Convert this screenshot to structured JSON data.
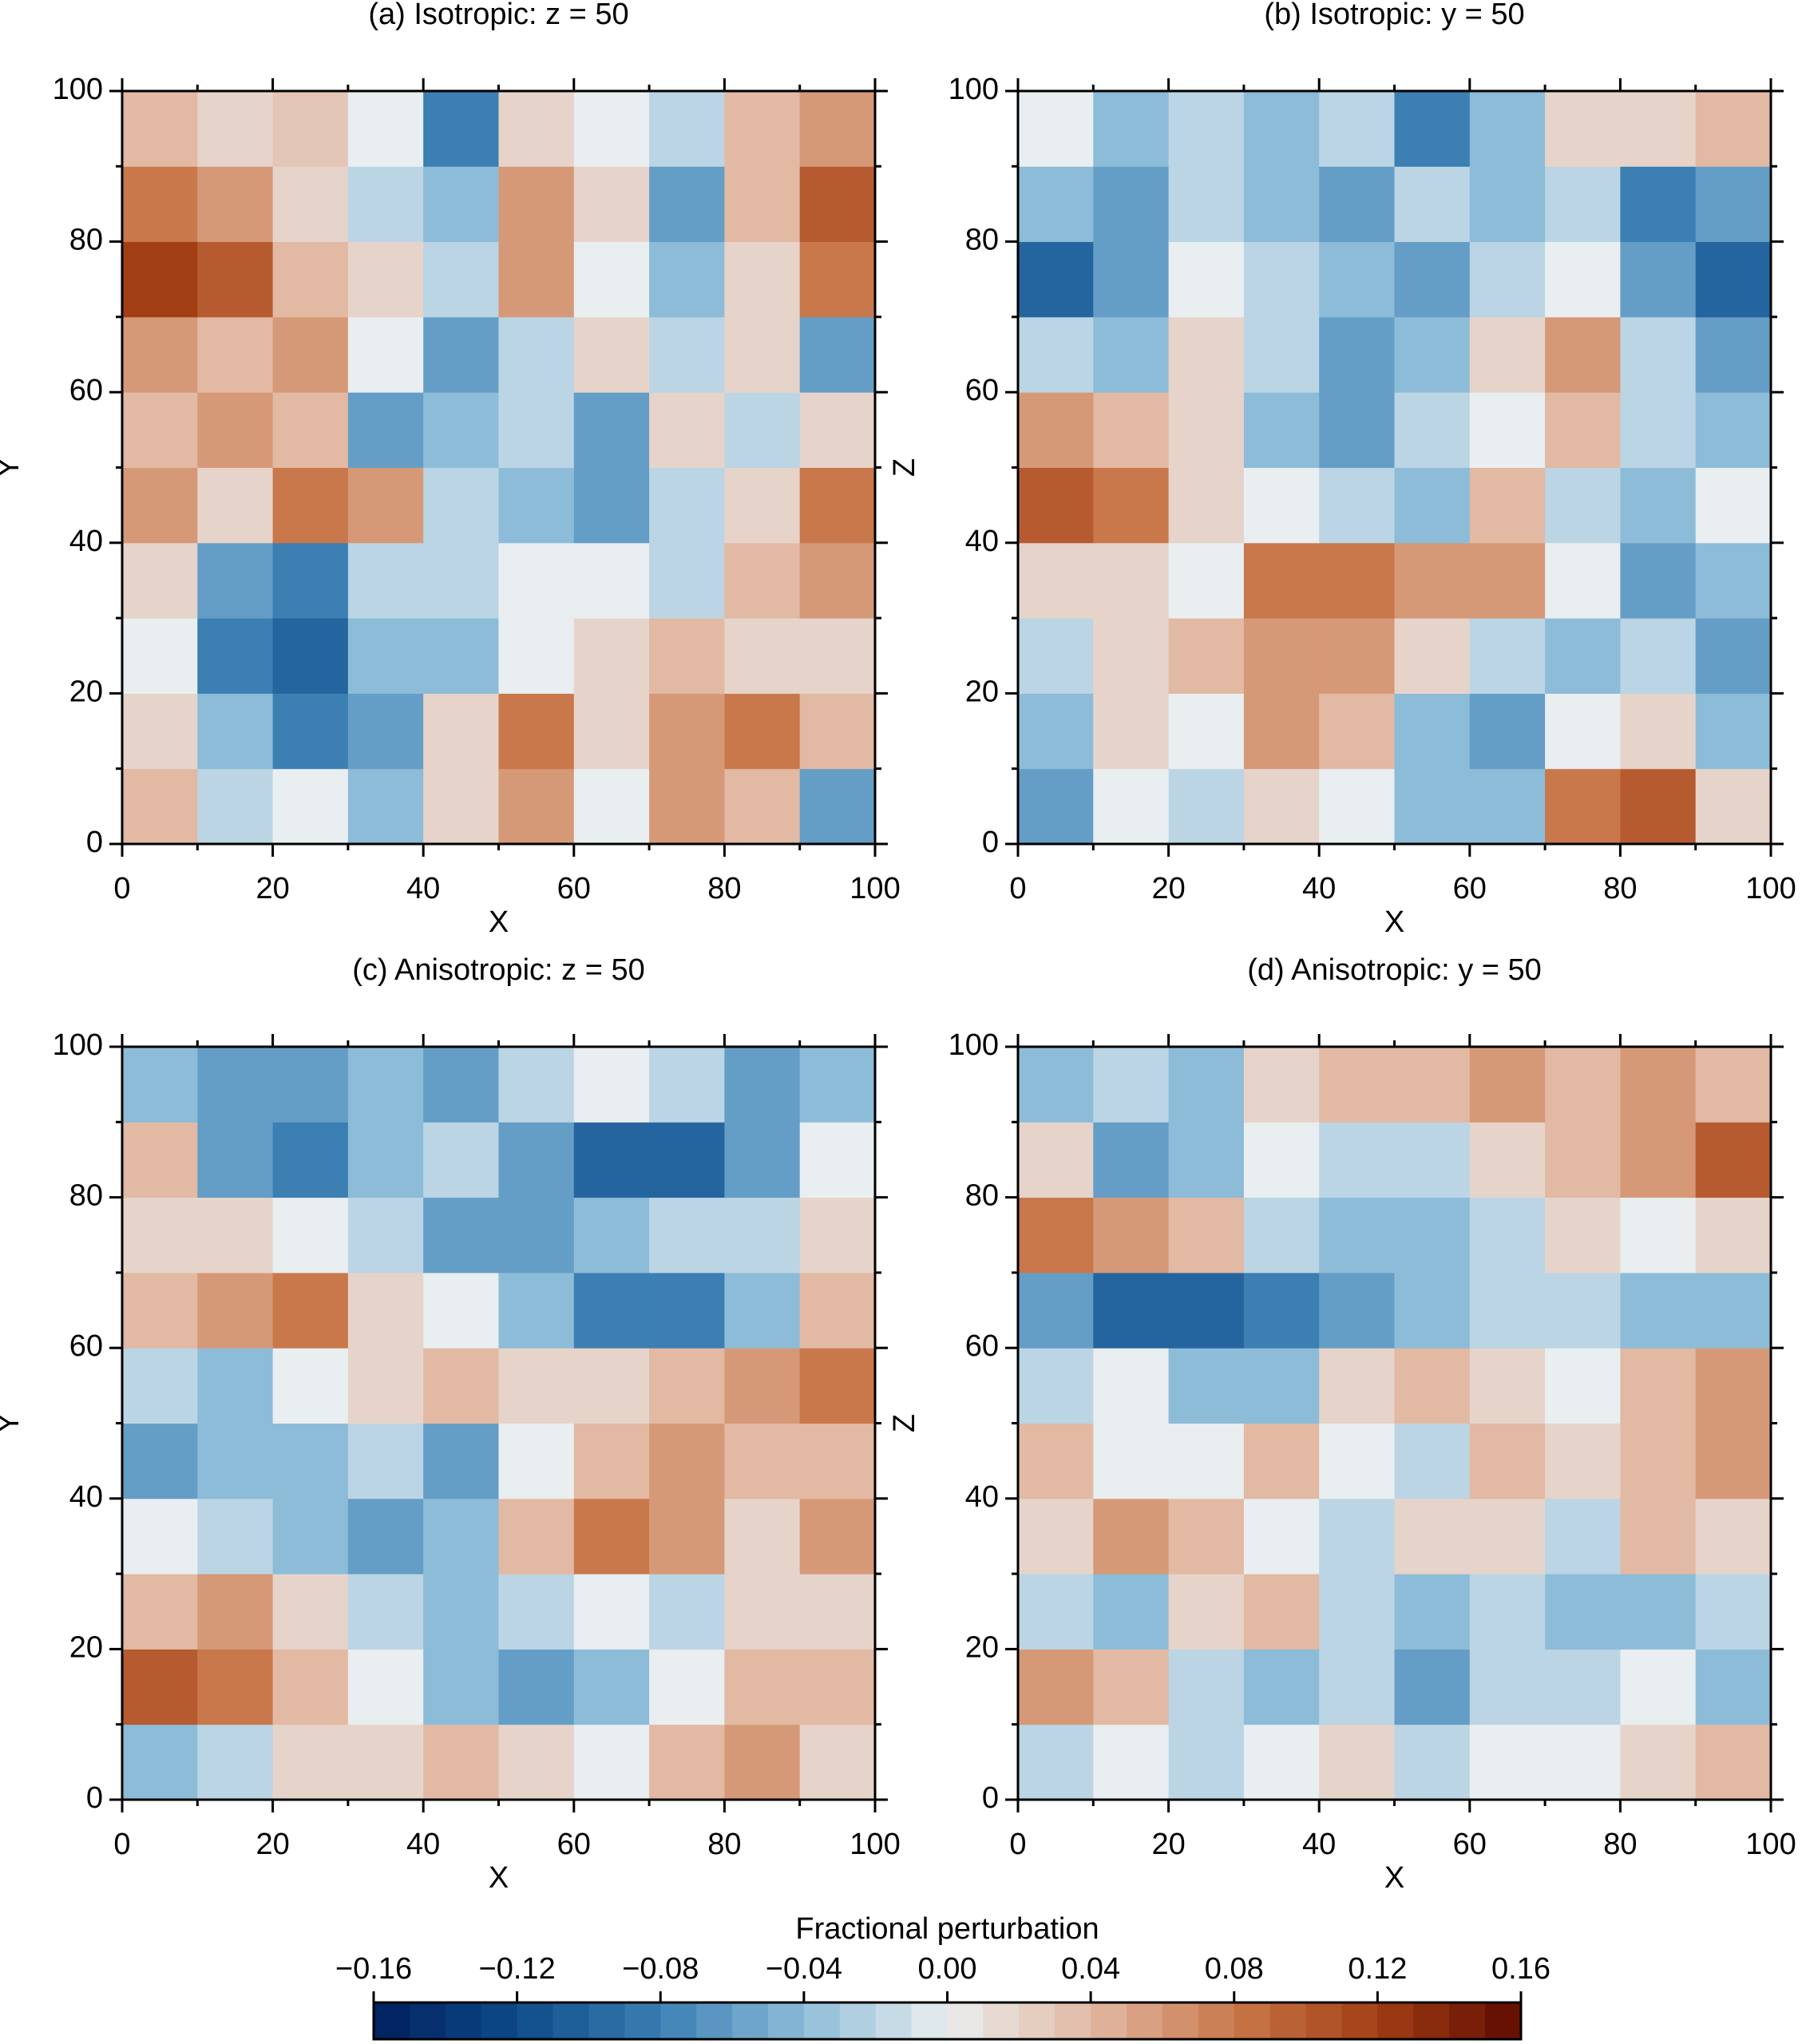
{
  "chart_data": [
    {
      "type": "heatmap",
      "title": "(a) Isotropic: z = 50",
      "x_label": "X",
      "y_label": "Y",
      "xlim": [
        0,
        100
      ],
      "ylim": [
        0,
        100
      ],
      "xticks": [
        0,
        20,
        40,
        60,
        80,
        100
      ],
      "yticks": [
        0,
        20,
        40,
        60,
        80,
        100
      ],
      "z": [
        [
          0.04,
          -0.02,
          0.0,
          -0.04,
          0.02,
          0.06,
          0.0,
          0.06,
          0.04,
          -0.06
        ],
        [
          0.02,
          -0.04,
          -0.08,
          -0.06,
          0.02,
          0.08,
          0.02,
          0.06,
          0.08,
          0.04
        ],
        [
          0.0,
          -0.08,
          -0.1,
          -0.04,
          -0.04,
          0.0,
          0.02,
          0.04,
          0.02,
          0.02
        ],
        [
          0.02,
          -0.06,
          -0.08,
          -0.02,
          -0.02,
          0.0,
          0.0,
          -0.02,
          0.04,
          0.06
        ],
        [
          0.06,
          0.02,
          0.08,
          0.06,
          -0.02,
          -0.04,
          -0.06,
          -0.02,
          0.02,
          0.08
        ],
        [
          0.04,
          0.06,
          0.04,
          -0.06,
          -0.04,
          -0.02,
          -0.06,
          0.02,
          -0.02,
          0.02
        ],
        [
          0.06,
          0.04,
          0.06,
          0.0,
          -0.06,
          -0.02,
          0.02,
          -0.02,
          0.02,
          -0.06
        ],
        [
          0.12,
          0.1,
          0.04,
          0.02,
          -0.02,
          0.06,
          0.0,
          -0.04,
          0.02,
          0.08
        ],
        [
          0.08,
          0.06,
          0.02,
          -0.02,
          -0.04,
          0.06,
          0.02,
          -0.06,
          0.04,
          0.1
        ],
        [
          0.04,
          0.02,
          0.03,
          0.0,
          -0.08,
          0.02,
          0.0,
          -0.02,
          0.04,
          0.06
        ]
      ]
    },
    {
      "type": "heatmap",
      "title": "(b) Isotropic: y = 50",
      "x_label": "X",
      "y_label": "Z",
      "xlim": [
        0,
        100
      ],
      "ylim": [
        0,
        100
      ],
      "xticks": [
        0,
        20,
        40,
        60,
        80,
        100
      ],
      "yticks": [
        0,
        20,
        40,
        60,
        80,
        100
      ],
      "z": [
        [
          -0.06,
          0.0,
          -0.02,
          0.02,
          0.0,
          -0.04,
          -0.04,
          0.08,
          0.1,
          0.02
        ],
        [
          -0.04,
          0.02,
          0.0,
          0.06,
          0.04,
          -0.04,
          -0.06,
          0.0,
          0.02,
          -0.04
        ],
        [
          -0.02,
          0.02,
          0.04,
          0.06,
          0.06,
          0.02,
          -0.02,
          -0.04,
          -0.02,
          -0.06
        ],
        [
          0.02,
          0.02,
          0.0,
          0.08,
          0.08,
          0.06,
          0.06,
          0.0,
          -0.06,
          -0.04
        ],
        [
          0.1,
          0.08,
          0.02,
          0.0,
          -0.02,
          -0.04,
          0.04,
          -0.02,
          -0.04,
          0.0
        ],
        [
          0.06,
          0.04,
          0.02,
          -0.04,
          -0.06,
          -0.02,
          0.0,
          0.04,
          -0.02,
          -0.04
        ],
        [
          -0.02,
          -0.04,
          0.02,
          -0.02,
          -0.06,
          -0.04,
          0.02,
          0.06,
          -0.02,
          -0.06
        ],
        [
          -0.1,
          -0.06,
          0.0,
          -0.02,
          -0.04,
          -0.06,
          -0.02,
          0.0,
          -0.06,
          -0.1
        ],
        [
          -0.04,
          -0.06,
          -0.02,
          -0.04,
          -0.06,
          -0.02,
          -0.04,
          -0.02,
          -0.08,
          -0.06
        ],
        [
          0.0,
          -0.04,
          -0.02,
          -0.04,
          -0.02,
          -0.08,
          -0.04,
          0.02,
          0.02,
          0.04
        ]
      ]
    },
    {
      "type": "heatmap",
      "title": "(c) Anisotropic: z = 50",
      "x_label": "X",
      "y_label": "Y",
      "xlim": [
        0,
        100
      ],
      "ylim": [
        0,
        100
      ],
      "xticks": [
        0,
        20,
        40,
        60,
        80,
        100
      ],
      "yticks": [
        0,
        20,
        40,
        60,
        80,
        100
      ],
      "z": [
        [
          -0.04,
          -0.02,
          0.02,
          0.02,
          0.04,
          0.02,
          0.0,
          0.04,
          0.06,
          0.02
        ],
        [
          0.1,
          0.08,
          0.04,
          0.0,
          -0.04,
          -0.06,
          -0.04,
          0.0,
          0.04,
          0.04
        ],
        [
          0.04,
          0.06,
          0.02,
          -0.02,
          -0.04,
          -0.02,
          0.0,
          -0.02,
          0.02,
          0.02
        ],
        [
          0.0,
          -0.02,
          -0.04,
          -0.06,
          -0.04,
          0.04,
          0.08,
          0.06,
          0.02,
          0.06
        ],
        [
          -0.06,
          -0.04,
          -0.04,
          -0.02,
          -0.06,
          0.0,
          0.04,
          0.06,
          0.04,
          0.04
        ],
        [
          -0.02,
          -0.04,
          0.0,
          0.02,
          0.04,
          0.02,
          0.02,
          0.04,
          0.06,
          0.08
        ],
        [
          0.04,
          0.06,
          0.08,
          0.02,
          0.0,
          -0.04,
          -0.08,
          -0.08,
          -0.04,
          0.04
        ],
        [
          0.02,
          0.02,
          0.0,
          -0.02,
          -0.06,
          -0.06,
          -0.04,
          -0.02,
          -0.02,
          0.02
        ],
        [
          0.04,
          -0.06,
          -0.08,
          -0.04,
          -0.02,
          -0.06,
          -0.1,
          -0.1,
          -0.06,
          0.0
        ],
        [
          -0.04,
          -0.06,
          -0.06,
          -0.04,
          -0.06,
          -0.02,
          0.0,
          -0.02,
          -0.06,
          -0.04
        ]
      ]
    },
    {
      "type": "heatmap",
      "title": "(d) Anisotropic: y = 50",
      "x_label": "X",
      "y_label": "Z",
      "xlim": [
        0,
        100
      ],
      "ylim": [
        0,
        100
      ],
      "xticks": [
        0,
        20,
        40,
        60,
        80,
        100
      ],
      "yticks": [
        0,
        20,
        40,
        60,
        80,
        100
      ],
      "z": [
        [
          -0.02,
          0.0,
          -0.02,
          0.0,
          0.02,
          -0.02,
          0.0,
          0.0,
          0.02,
          0.04
        ],
        [
          0.06,
          0.04,
          -0.02,
          -0.04,
          -0.02,
          -0.06,
          -0.02,
          -0.02,
          0.0,
          -0.04
        ],
        [
          -0.02,
          -0.04,
          0.02,
          0.04,
          -0.02,
          -0.04,
          -0.02,
          -0.04,
          -0.04,
          -0.02
        ],
        [
          0.02,
          0.06,
          0.04,
          0.0,
          -0.02,
          0.02,
          0.02,
          -0.02,
          0.04,
          0.02
        ],
        [
          0.04,
          0.0,
          0.0,
          0.04,
          0.0,
          -0.02,
          0.04,
          0.02,
          0.04,
          0.06
        ],
        [
          -0.02,
          0.0,
          -0.04,
          -0.04,
          0.02,
          0.04,
          0.02,
          0.0,
          0.04,
          0.06
        ],
        [
          -0.06,
          -0.1,
          -0.1,
          -0.08,
          -0.06,
          -0.04,
          -0.02,
          -0.02,
          -0.04,
          -0.04
        ],
        [
          0.08,
          0.06,
          0.04,
          -0.02,
          -0.04,
          -0.04,
          -0.02,
          0.02,
          0.0,
          0.02
        ],
        [
          0.02,
          -0.06,
          -0.04,
          0.0,
          -0.02,
          -0.02,
          0.02,
          0.04,
          0.06,
          0.1
        ],
        [
          -0.04,
          -0.02,
          -0.04,
          0.02,
          0.04,
          0.04,
          0.06,
          0.04,
          0.06,
          0.04
        ]
      ]
    }
  ],
  "colorbar": {
    "label": "Fractional perturbation",
    "lim": [
      -0.16,
      0.16
    ],
    "ticks": [
      {
        "value": -0.16,
        "label": "−0.16"
      },
      {
        "value": -0.12,
        "label": "−0.12"
      },
      {
        "value": -0.08,
        "label": "−0.08"
      },
      {
        "value": -0.04,
        "label": "−0.04"
      },
      {
        "value": 0,
        "label": "0.00"
      },
      0.04,
      0.08,
      0.12,
      0.16
    ],
    "colors": [
      "#001f5c",
      "#0d4a8a",
      "#3b7fb3",
      "#8dbcd8",
      "#e9eef0",
      "#e2b9a3",
      "#c9784b",
      "#a23e14",
      "#5e0b02"
    ]
  }
}
